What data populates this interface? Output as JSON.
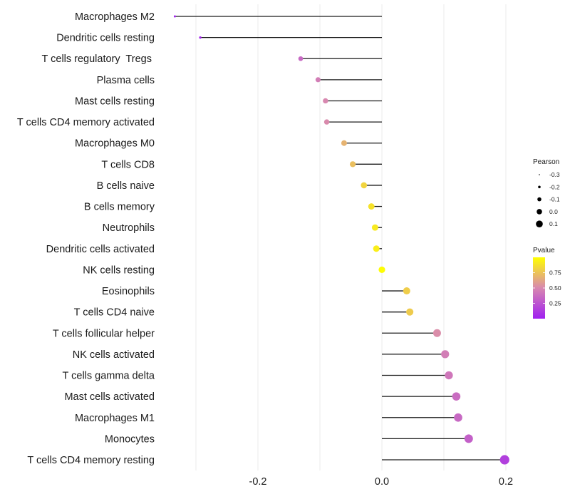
{
  "chart_data": {
    "type": "lollipop",
    "title": "",
    "xlabel": "",
    "ylabel": "",
    "xlim": [
      -0.345,
      0.22
    ],
    "xticks": [
      -0.2,
      0.0,
      0.2
    ],
    "xtick_labels": [
      "-0.2",
      "0.0",
      "0.2"
    ],
    "minor_gridlines": [
      -0.3,
      -0.1,
      0.1
    ],
    "grid": true,
    "categories": [
      "Macrophages M2",
      "Dendritic cells resting",
      "T cells regulatory  Tregs ",
      "Plasma cells",
      "Mast cells resting",
      "T cells CD4 memory activated",
      "Macrophages M0",
      "T cells CD8",
      "B cells naive",
      "B cells memory",
      "Neutrophils",
      "Dendritic cells activated",
      "NK cells resting",
      "Eosinophils",
      "T cells CD4 naive",
      "T cells follicular helper",
      "NK cells activated",
      "T cells gamma delta",
      "Mast cells activated",
      "Macrophages M1",
      "Monocytes",
      "T cells CD4 memory resting"
    ],
    "pearson": [
      -0.334,
      -0.293,
      -0.131,
      -0.103,
      -0.091,
      -0.089,
      -0.061,
      -0.047,
      -0.029,
      -0.017,
      -0.011,
      -0.009,
      0.0,
      0.04,
      0.045,
      0.089,
      0.102,
      0.108,
      0.12,
      0.123,
      0.14,
      0.198
    ],
    "pvalue": [
      0.01,
      0.03,
      0.35,
      0.45,
      0.5,
      0.51,
      0.68,
      0.73,
      0.82,
      0.88,
      0.91,
      0.93,
      0.99,
      0.79,
      0.78,
      0.52,
      0.45,
      0.42,
      0.37,
      0.35,
      0.31,
      0.15
    ],
    "size_legend": {
      "title": "Pearson",
      "values": [
        -0.3,
        -0.2,
        -0.1,
        0.0,
        0.1
      ],
      "labels": [
        "-0.3",
        "-0.2",
        "-0.1",
        "0.0",
        "0.1"
      ]
    },
    "color_legend": {
      "title": "Pvalue",
      "range": [
        0.0,
        1.0
      ],
      "ticks": [
        0.25,
        0.5,
        0.75
      ],
      "tick_labels": [
        "0.25",
        "0.50",
        "0.75"
      ],
      "low_color": "#A020F0",
      "mid_color": "#D888B0",
      "high_color": "#FFFF00"
    },
    "legend_position": "right",
    "stem_color": "#1a1a1a",
    "grid_color": "#ebebeb"
  }
}
